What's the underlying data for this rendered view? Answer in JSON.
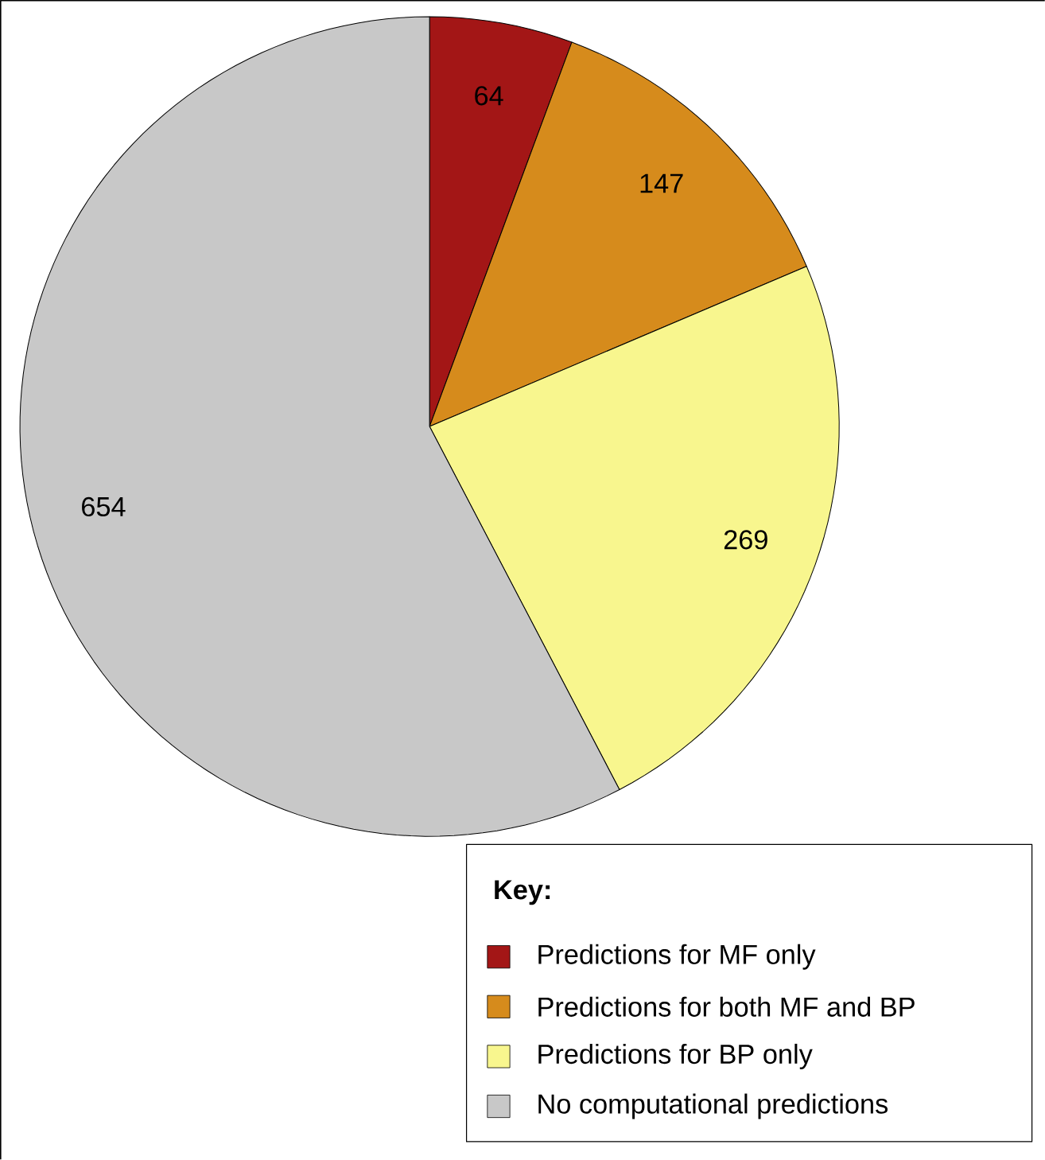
{
  "chart_data": {
    "type": "pie",
    "categories": [
      "Predictions for MF only",
      "Predictions for both MF and BP",
      "Predictions for BP only",
      "No computational predictions"
    ],
    "values": [
      64,
      147,
      269,
      654
    ],
    "colors": [
      "#a31616",
      "#d68b1c",
      "#f8f68e",
      "#c8c8c8"
    ],
    "data_labels": true,
    "legend": "bottom right",
    "legend_title": "Key:"
  }
}
